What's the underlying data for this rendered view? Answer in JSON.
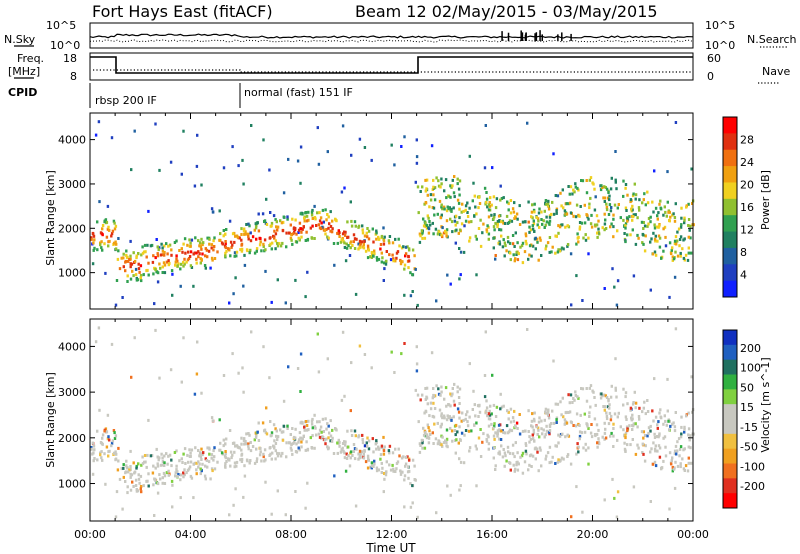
{
  "header": {
    "title": "Fort Hays East (fitACF)",
    "beam_date": "Beam 12 02/May/2015 - 03/May/2015"
  },
  "panels": {
    "noise": {
      "left_label": "N.Sky",
      "right_label": "N.Search",
      "left_ticks": [
        "10^5",
        "10^0"
      ],
      "right_ticks": [
        "10^5",
        "10^0"
      ]
    },
    "freq": {
      "left_label": "Freq.",
      "left_unit": "[MHz]",
      "right_label": "Nave",
      "left_ticks": [
        "18",
        "8"
      ],
      "right_ticks": [
        "60",
        "0"
      ]
    },
    "cpid": {
      "label": "CPID",
      "segments": [
        "rbsp 200 IF",
        "normal (fast) 151 IF"
      ]
    }
  },
  "chart_data": [
    {
      "type": "heatmap",
      "panel": "power",
      "ylabel": "Slant Range [km]",
      "xlabel": "",
      "x_range_hours": [
        0,
        24
      ],
      "ylim": [
        180,
        4600
      ],
      "y_ticks": [
        "1000",
        "2000",
        "3000",
        "4000"
      ],
      "colorbar": {
        "label": "Power [dB]",
        "ticks": [
          "4",
          "8",
          "12",
          "16",
          "20",
          "24",
          "28"
        ],
        "colors": [
          "#1020ff",
          "#2040c0",
          "#2060a0",
          "#208060",
          "#30a050",
          "#90c030",
          "#f0d020",
          "#f0a010",
          "#f07010",
          "#e03010",
          "#ff0000"
        ]
      }
    },
    {
      "type": "heatmap",
      "panel": "velocity",
      "ylabel": "Slant Range [km]",
      "xlabel": "Time UT",
      "x_ticks": [
        "00:00",
        "04:00",
        "08:00",
        "12:00",
        "16:00",
        "20:00",
        "00:00"
      ],
      "ylim": [
        180,
        4600
      ],
      "y_ticks": [
        "1000",
        "2000",
        "3000",
        "4000"
      ],
      "colorbar": {
        "label": "Velocity [m s^-1]",
        "ticks": [
          "200",
          "100",
          "50",
          "15",
          "-15",
          "-50",
          "-100",
          "-200"
        ],
        "colors": [
          "#1030c0",
          "#2060c0",
          "#207060",
          "#30b040",
          "#80d040",
          "#c8c8c0",
          "#c8c8c0",
          "#f0c040",
          "#f0a020",
          "#f07020",
          "#e03020",
          "#ff0000"
        ]
      }
    }
  ]
}
